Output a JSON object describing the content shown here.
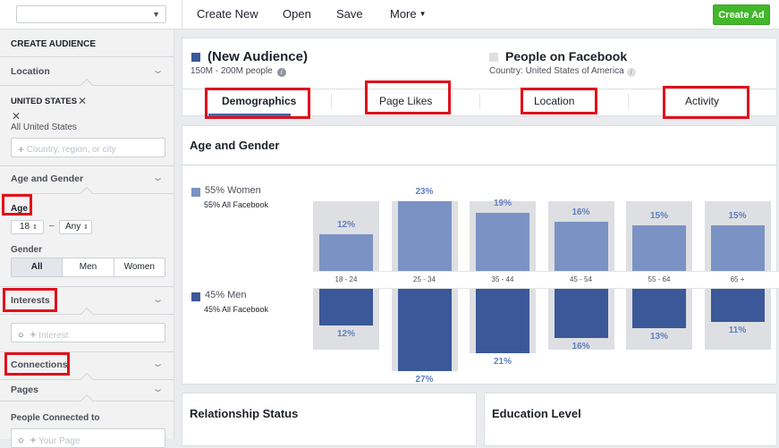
{
  "toolbar": {
    "account_value": "",
    "create_new": "Create New",
    "open": "Open",
    "save": "Save",
    "more": "More",
    "create_ad": "Create Ad"
  },
  "sidebar": {
    "title": "CREATE AUDIENCE",
    "location_head": "Location",
    "country": "UNITED STATES",
    "all_us": "All United States",
    "location_placeholder": "Country, region, or city",
    "age_gender_head": "Age and Gender",
    "age_label": "Age",
    "age_min": "18",
    "age_dash": "–",
    "age_max": "Any",
    "gender_label": "Gender",
    "gender_options": [
      "All",
      "Men",
      "Women"
    ],
    "interests_head": "Interests",
    "interest_placeholder": "Interest",
    "connections_head": "Connections",
    "pages_head": "Pages",
    "people_connected": "People Connected to",
    "page_placeholder": "Your Page"
  },
  "header": {
    "audience_name": "(New Audience)",
    "audience_size": "150M - 200M people",
    "compare_name": "People on Facebook",
    "compare_country": "Country: United States of America",
    "tabs": [
      "Demographics",
      "Page Likes",
      "Location",
      "Activity"
    ],
    "active_tab": "Demographics"
  },
  "colors": {
    "audience": "#3b5998",
    "women": "#7b92c4",
    "men": "#3b5998",
    "bar_bg": "#dddfe2",
    "highlight": "#e0101b",
    "create_ad": "#42b72a"
  },
  "age_gender": {
    "title": "Age and Gender",
    "women_label": "55% Women",
    "women_sub": "55% All Facebook",
    "men_label": "45% Men",
    "men_sub": "45% All Facebook"
  },
  "chart_data": {
    "type": "bar",
    "categories": [
      "18 - 24",
      "25 - 34",
      "35 - 44",
      "45 - 54",
      "55 - 64",
      "65 +"
    ],
    "series": [
      {
        "name": "Women",
        "values": [
          12,
          23,
          19,
          16,
          15,
          15
        ]
      },
      {
        "name": "Men",
        "values": [
          12,
          27,
          21,
          16,
          13,
          11
        ]
      }
    ],
    "labels_women": [
      "12%",
      "23%",
      "19%",
      "16%",
      "15%",
      "15%"
    ],
    "labels_men": [
      "12%",
      "27%",
      "21%",
      "16%",
      "13%",
      "11%"
    ],
    "ylim": [
      0,
      27
    ]
  },
  "bottom_cards": {
    "relationship": "Relationship Status",
    "education": "Education Level"
  }
}
